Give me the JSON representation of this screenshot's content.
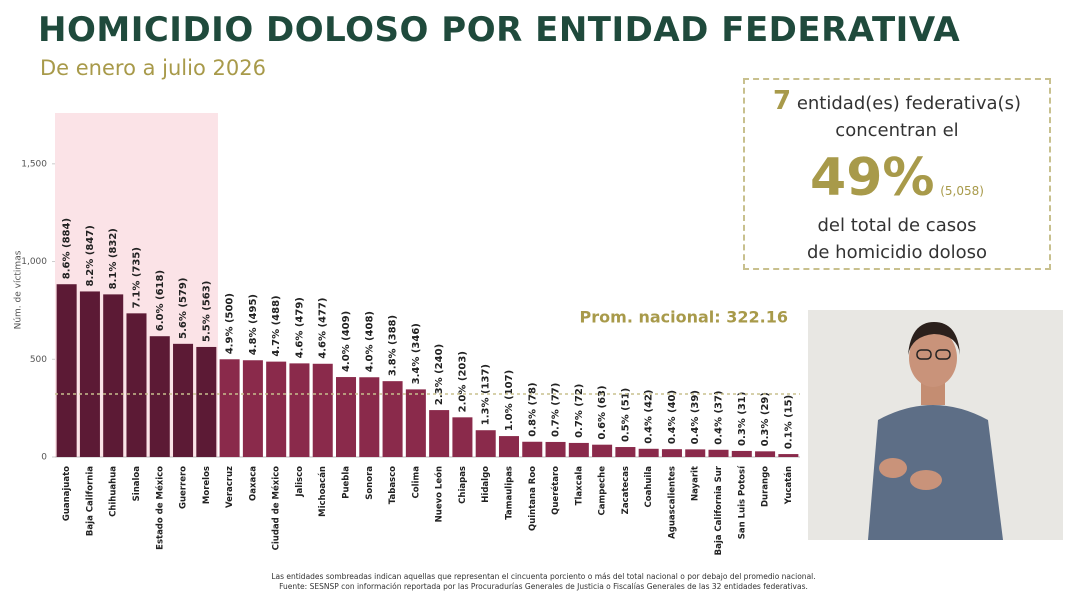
{
  "chart_data": {
    "type": "bar",
    "title": "HOMICIDIO DOLOSO POR ENTIDAD FEDERATIVA",
    "subtitle": "De enero a julio 2026",
    "y_label": "Núm. de víctimas",
    "categories": [
      "Guanajuato",
      "Baja California",
      "Chihuahua",
      "Sinaloa",
      "Estado de México",
      "Guerrero",
      "Morelos",
      "Veracruz",
      "Oaxaca",
      "Ciudad de México",
      "Jalisco",
      "Michoacán",
      "Puebla",
      "Sonora",
      "Tabasco",
      "Colima",
      "Nuevo León",
      "Chiapas",
      "Hidalgo",
      "Tamaulipas",
      "Quintana Roo",
      "Querétaro",
      "Tlaxcala",
      "Campeche",
      "Zacatecas",
      "Coahuila",
      "Aguascalientes",
      "Nayarit",
      "Baja California Sur",
      "San Luis Potosí",
      "Durango",
      "Yucatán"
    ],
    "values": [
      884,
      847,
      832,
      735,
      618,
      579,
      563,
      500,
      495,
      488,
      479,
      477,
      409,
      408,
      388,
      346,
      240,
      203,
      137,
      107,
      78,
      77,
      72,
      63,
      51,
      42,
      40,
      39,
      37,
      31,
      29,
      15
    ],
    "value_labels": [
      "8.6% (884)",
      "8.2% (847)",
      "8.1% (832)",
      "7.1% (735)",
      "6.0% (618)",
      "5.6% (579)",
      "5.5% (563)",
      "4.9% (500)",
      "4.8% (495)",
      "4.7% (488)",
      "4.6% (479)",
      "4.6% (477)",
      "4.0% (409)",
      "4.0% (408)",
      "3.8% (388)",
      "3.4% (346)",
      "2.3% (240)",
      "2.0% (203)",
      "1.3% (137)",
      "1.0% (107)",
      "0.8% (78)",
      "0.7% (77)",
      "0.7% (72)",
      "0.6% (63)",
      "0.5% (51)",
      "0.4% (42)",
      "0.4% (40)",
      "0.4% (39)",
      "0.4% (37)",
      "0.3% (31)",
      "0.3% (29)",
      "0.1% (15)"
    ],
    "colors": [
      "#5c1a35",
      "#5c1a35",
      "#5c1a35",
      "#5c1a35",
      "#5c1a35",
      "#5c1a35",
      "#5c1a35",
      "#8a2a4b",
      "#8a2a4b",
      "#8a2a4b",
      "#8a2a4b",
      "#8a2a4b",
      "#8a2a4b",
      "#8a2a4b",
      "#8a2a4b",
      "#8a2a4b",
      "#8a2a4b",
      "#8a2a4b",
      "#8a2a4b",
      "#8a2a4b",
      "#8a2a4b",
      "#8a2a4b",
      "#8a2a4b",
      "#8a2a4b",
      "#8a2a4b",
      "#8a2a4b",
      "#8a2a4b",
      "#8a2a4b",
      "#8a2a4b",
      "#8a2a4b",
      "#8a2a4b",
      "#8a2a4b"
    ],
    "shade_color": "#fbe3e7",
    "ylim": [
      0,
      1760
    ],
    "yticks": [
      0,
      500,
      {
        "value": 1000,
        "label": "1,000"
      },
      {
        "value": 1500,
        "label": "1,500"
      }
    ],
    "reference_line": {
      "value": 322.16,
      "label": "Prom. nacional: 322.16",
      "color": "#c8c08e"
    },
    "callout": {
      "count": 7,
      "count_text": "entidad(es) federativa(s)",
      "line2": "concentran el",
      "percent": "49%",
      "cases": "(5,058)",
      "line3": "del total de casos",
      "line4": "de homicidio doloso"
    },
    "notes": [
      "Las entidades sombreadas indican aquellas que representan el cincuenta porciento o más del total nacional o por debajo del promedio nacional.",
      "Fuente: SESNSP con información reportada por las Procuradurías Generales de Justicia o Fiscalías Generales de las 32 entidades federativas."
    ]
  }
}
